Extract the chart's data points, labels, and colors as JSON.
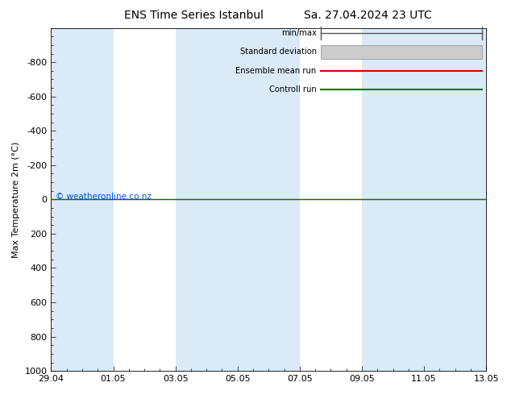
{
  "title_left": "ENS Time Series Istanbul",
  "title_right": "Sa. 27.04.2024 23 UTC",
  "ylabel": "Max Temperature 2m (°C)",
  "ylim": [
    -1000,
    1000
  ],
  "yticks": [
    -800,
    -600,
    -400,
    -200,
    0,
    200,
    400,
    600,
    800,
    1000
  ],
  "xtick_labels": [
    "29.04",
    "01.05",
    "03.05",
    "05.05",
    "07.05",
    "09.05",
    "11.05",
    "13.05"
  ],
  "xtick_positions": [
    0,
    2,
    4,
    6,
    8,
    10,
    12,
    14
  ],
  "x_total_days": 14,
  "shaded_columns": [
    0,
    4,
    6,
    10,
    12
  ],
  "shaded_color": "#daeaf7",
  "control_run_y": 0,
  "ensemble_mean_y": 0,
  "background_color": "#ffffff",
  "watermark": "© weatheronline.co.nz",
  "watermark_color": "#0055cc",
  "legend_items": [
    "min/max",
    "Standard deviation",
    "Ensemble mean run",
    "Controll run"
  ],
  "legend_colors": [
    "#555555",
    "#aaaaaa",
    "#dd0000",
    "#007700"
  ],
  "title_fontsize": 10,
  "axis_fontsize": 8,
  "tick_fontsize": 8
}
